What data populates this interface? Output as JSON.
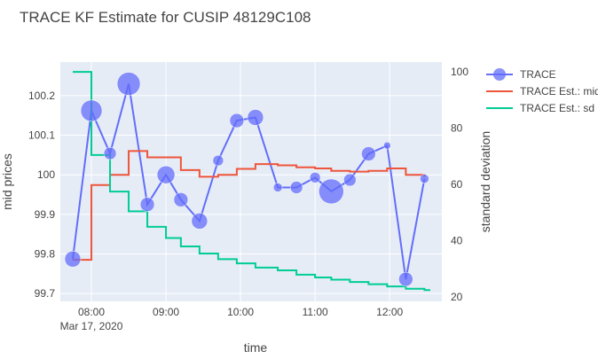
{
  "chart_data": {
    "type": "line",
    "title": "TRACE KF Estimate for CUSIP 48129C108",
    "xlabel": "time",
    "ylabel_left": "mid prices",
    "ylabel_right": "standard deviation",
    "x_ticks": [
      "08:00",
      "09:00",
      "10:00",
      "11:00",
      "12:00"
    ],
    "x_date_label": "Mar 17, 2020",
    "x_range": [
      "07:35",
      "12:42"
    ],
    "y_left_ticks": [
      "99.7",
      "99.8",
      "99.9",
      "100",
      "100.1",
      "100.2"
    ],
    "y_left_range": [
      99.68,
      100.285
    ],
    "y_right_ticks": [
      "20",
      "40",
      "60",
      "80",
      "100"
    ],
    "y_right_range": [
      18.5,
      103.5
    ],
    "legend_position": "top-right",
    "series": [
      {
        "name": "TRACE",
        "kind": "markers+lines",
        "color": "#636efa",
        "axis": "left",
        "points": [
          {
            "t": "07:45",
            "y": 99.787,
            "size": 9
          },
          {
            "t": "08:00",
            "y": 100.162,
            "size": 12
          },
          {
            "t": "08:15",
            "y": 100.054,
            "size": 7
          },
          {
            "t": "08:30",
            "y": 100.23,
            "size": 13
          },
          {
            "t": "08:45",
            "y": 99.925,
            "size": 8
          },
          {
            "t": "09:00",
            "y": 100.0,
            "size": 10
          },
          {
            "t": "09:12",
            "y": 99.937,
            "size": 8
          },
          {
            "t": "09:27",
            "y": 99.883,
            "size": 9
          },
          {
            "t": "09:42",
            "y": 100.036,
            "size": 6
          },
          {
            "t": "09:57",
            "y": 100.137,
            "size": 8
          },
          {
            "t": "10:12",
            "y": 100.145,
            "size": 9
          },
          {
            "t": "10:30",
            "y": 99.968,
            "size": 5
          },
          {
            "t": "10:45",
            "y": 99.968,
            "size": 7
          },
          {
            "t": "11:00",
            "y": 99.993,
            "size": 6
          },
          {
            "t": "11:13",
            "y": 99.958,
            "size": 14
          },
          {
            "t": "11:28",
            "y": 99.987,
            "size": 7
          },
          {
            "t": "11:43",
            "y": 100.053,
            "size": 8
          },
          {
            "t": "11:58",
            "y": 100.074,
            "size": 4
          },
          {
            "t": "12:13",
            "y": 99.736,
            "size": 8
          },
          {
            "t": "12:28",
            "y": 99.99,
            "size": 5
          }
        ]
      },
      {
        "name": "TRACE Est.: mid",
        "kind": "step",
        "color": "#ef553b",
        "axis": "left",
        "points": [
          {
            "t": "07:45",
            "y": 99.785
          },
          {
            "t": "07:57",
            "y": 99.785
          },
          {
            "t": "08:00",
            "y": 99.974
          },
          {
            "t": "08:12",
            "y": 99.974
          },
          {
            "t": "08:15",
            "y": 100.0
          },
          {
            "t": "08:27",
            "y": 100.0
          },
          {
            "t": "08:30",
            "y": 100.06
          },
          {
            "t": "08:42",
            "y": 100.06
          },
          {
            "t": "08:45",
            "y": 100.044
          },
          {
            "t": "09:12",
            "y": 100.012
          },
          {
            "t": "09:27",
            "y": 99.995
          },
          {
            "t": "09:42",
            "y": 100.0
          },
          {
            "t": "09:57",
            "y": 100.015
          },
          {
            "t": "10:12",
            "y": 100.027
          },
          {
            "t": "10:30",
            "y": 100.024
          },
          {
            "t": "10:45",
            "y": 100.019
          },
          {
            "t": "11:00",
            "y": 100.016
          },
          {
            "t": "11:13",
            "y": 100.01
          },
          {
            "t": "11:28",
            "y": 100.008
          },
          {
            "t": "11:43",
            "y": 100.01
          },
          {
            "t": "11:58",
            "y": 100.016
          },
          {
            "t": "12:13",
            "y": 100.0
          },
          {
            "t": "12:28",
            "y": 99.995
          }
        ]
      },
      {
        "name": "TRACE Est.: sd",
        "kind": "step",
        "color": "#00cc96",
        "axis": "right",
        "points": [
          {
            "t": "07:45",
            "y": 100
          },
          {
            "t": "07:57",
            "y": 100
          },
          {
            "t": "08:00",
            "y": 70.5
          },
          {
            "t": "08:12",
            "y": 70.5
          },
          {
            "t": "08:15",
            "y": 57.5
          },
          {
            "t": "08:27",
            "y": 57.5
          },
          {
            "t": "08:30",
            "y": 50.5
          },
          {
            "t": "08:45",
            "y": 45
          },
          {
            "t": "09:00",
            "y": 41
          },
          {
            "t": "09:12",
            "y": 38
          },
          {
            "t": "09:27",
            "y": 35.5
          },
          {
            "t": "09:42",
            "y": 33.5
          },
          {
            "t": "09:57",
            "y": 32
          },
          {
            "t": "10:12",
            "y": 30.5
          },
          {
            "t": "10:30",
            "y": 29.5
          },
          {
            "t": "10:45",
            "y": 28
          },
          {
            "t": "11:00",
            "y": 27
          },
          {
            "t": "11:13",
            "y": 26.2
          },
          {
            "t": "11:28",
            "y": 25.4
          },
          {
            "t": "11:43",
            "y": 24.6
          },
          {
            "t": "11:58",
            "y": 23.8
          },
          {
            "t": "12:13",
            "y": 23
          },
          {
            "t": "12:28",
            "y": 22.5
          },
          {
            "t": "12:32",
            "y": 22.2
          }
        ]
      }
    ]
  }
}
